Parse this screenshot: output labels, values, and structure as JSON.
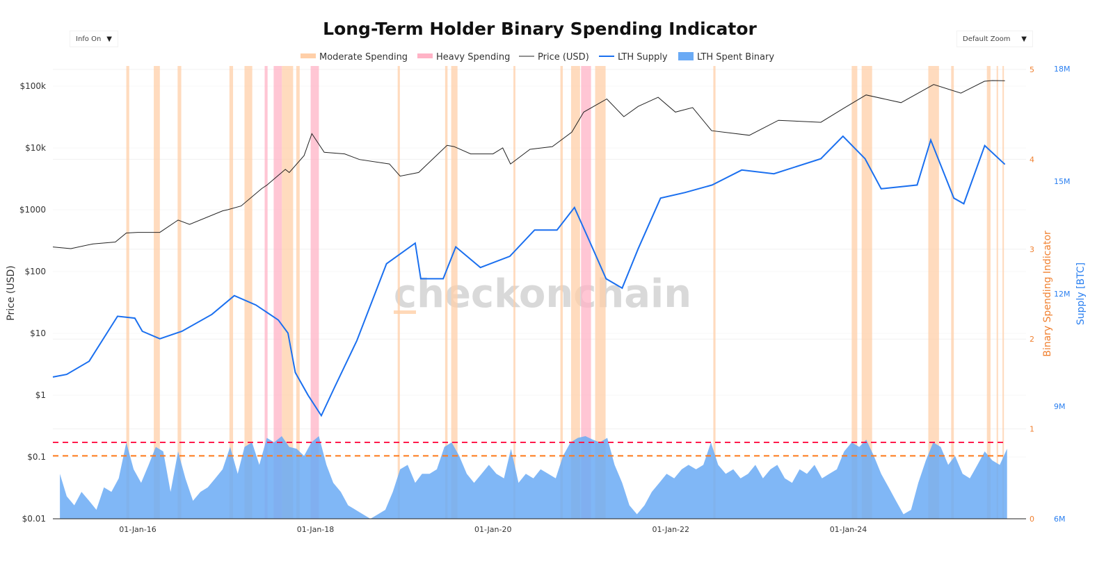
{
  "controls": {
    "info_label": "Info On",
    "zoom_label": "Default Zoom"
  },
  "watermark": "checkonchain",
  "colors": {
    "moderate": "#ffcfa8",
    "heavy": "#ffb3c6",
    "price": "#222222",
    "supply": "#1a6fef",
    "binary": "#6aaaf5",
    "red_line": "#ff1a4b",
    "orange_line": "#ff7a1a",
    "binary_axis": "#f08030",
    "supply_axis": "#2a7ff0"
  },
  "chart_data": {
    "type": "line",
    "title": "Long-Term Holder Binary Spending Indicator",
    "legend": {
      "position": "top",
      "items": [
        "Moderate Spending",
        "Heavy Spending",
        "Price (USD)",
        "LTH Supply",
        "LTH Spent Binary"
      ]
    },
    "x": {
      "type": "date",
      "range": [
        "2015-01-17",
        "2026-01-01"
      ],
      "ticks": [
        "2016-01-01",
        "2018-01-01",
        "2020-01-01",
        "2022-01-01",
        "2024-01-01"
      ],
      "tick_labels": [
        "01-Jan-16",
        "01-Jan-18",
        "01-Jan-20",
        "01-Jan-22",
        "01-Jan-24"
      ]
    },
    "y_price": {
      "label": "Price (USD)",
      "scale": "log",
      "range": [
        0.01,
        150000
      ],
      "ticks": [
        100000,
        10000,
        1000,
        100,
        10,
        1,
        0.1,
        0.01
      ],
      "tick_labels": [
        "$100k",
        "$10k",
        "$1000",
        "$100",
        "$10",
        "$1",
        "$0.1",
        "$0.01"
      ]
    },
    "y_binary": {
      "label": "Binary Spending Indicator",
      "range": [
        0,
        5
      ],
      "ticks": [
        0,
        1,
        2,
        3,
        4,
        5
      ],
      "tick_labels": [
        "0",
        "1",
        "2",
        "3",
        "4",
        "5"
      ]
    },
    "y_supply": {
      "label": "Supply [BTC]",
      "range": [
        6000000,
        18000000
      ],
      "ticks": [
        6000000,
        9000000,
        12000000,
        15000000,
        18000000
      ],
      "tick_labels": [
        "6M",
        "9M",
        "12M",
        "15M",
        "18M"
      ]
    },
    "thresholds": {
      "heavy": 0.85,
      "moderate": 0.7
    },
    "price": [
      [
        "2015-01-17",
        250
      ],
      [
        "2015-04-01",
        235
      ],
      [
        "2015-07-01",
        280
      ],
      [
        "2015-10-01",
        300
      ],
      [
        "2015-11-15",
        420
      ],
      [
        "2016-01-01",
        430
      ],
      [
        "2016-04-01",
        430
      ],
      [
        "2016-06-15",
        680
      ],
      [
        "2016-08-01",
        580
      ],
      [
        "2016-12-15",
        960
      ],
      [
        "2017-01-05",
        1000
      ],
      [
        "2017-03-01",
        1150
      ],
      [
        "2017-05-25",
        2200
      ],
      [
        "2017-06-15",
        2500
      ],
      [
        "2017-08-30",
        4500
      ],
      [
        "2017-09-15",
        4000
      ],
      [
        "2017-11-15",
        7500
      ],
      [
        "2017-12-17",
        17000
      ],
      [
        "2018-02-06",
        8500
      ],
      [
        "2018-05-01",
        8000
      ],
      [
        "2018-07-01",
        6500
      ],
      [
        "2018-11-01",
        5500
      ],
      [
        "2018-12-15",
        3500
      ],
      [
        "2019-03-01",
        4000
      ],
      [
        "2019-06-26",
        11000
      ],
      [
        "2019-07-25",
        10500
      ],
      [
        "2019-10-01",
        8000
      ],
      [
        "2020-01-01",
        8000
      ],
      [
        "2020-02-10",
        10000
      ],
      [
        "2020-03-13",
        5500
      ],
      [
        "2020-06-01",
        9500
      ],
      [
        "2020-09-01",
        10500
      ],
      [
        "2020-11-20",
        18000
      ],
      [
        "2021-01-08",
        38000
      ],
      [
        "2021-04-13",
        62000
      ],
      [
        "2021-06-22",
        32000
      ],
      [
        "2021-08-20",
        47000
      ],
      [
        "2021-11-10",
        66000
      ],
      [
        "2022-01-20",
        38000
      ],
      [
        "2022-04-01",
        45000
      ],
      [
        "2022-06-18",
        19000
      ],
      [
        "2022-11-20",
        16000
      ],
      [
        "2023-03-20",
        28000
      ],
      [
        "2023-09-10",
        26000
      ],
      [
        "2023-12-10",
        43000
      ],
      [
        "2024-03-14",
        72000
      ],
      [
        "2024-08-05",
        54000
      ],
      [
        "2024-12-17",
        106000
      ],
      [
        "2025-04-08",
        77000
      ],
      [
        "2025-07-14",
        120000
      ],
      [
        "2025-08-14",
        123000
      ],
      [
        "2025-10-06",
        122000
      ]
    ],
    "supply": [
      [
        "2015-01-17",
        9780000
      ],
      [
        "2015-03-15",
        9850000
      ],
      [
        "2015-06-15",
        10200000
      ],
      [
        "2015-10-10",
        11400000
      ],
      [
        "2015-12-20",
        11350000
      ],
      [
        "2016-01-20",
        11000000
      ],
      [
        "2016-04-01",
        10800000
      ],
      [
        "2016-07-01",
        11000000
      ],
      [
        "2016-11-01",
        11450000
      ],
      [
        "2017-02-01",
        11950000
      ],
      [
        "2017-05-01",
        11700000
      ],
      [
        "2017-08-01",
        11300000
      ],
      [
        "2017-09-10",
        10950000
      ],
      [
        "2017-10-10",
        9900000
      ],
      [
        "2017-12-01",
        9300000
      ],
      [
        "2018-01-25",
        8750000
      ],
      [
        "2018-03-20",
        9500000
      ],
      [
        "2018-06-20",
        10750000
      ],
      [
        "2018-10-20",
        12800000
      ],
      [
        "2019-02-15",
        13350000
      ],
      [
        "2019-03-10",
        12400000
      ],
      [
        "2019-06-10",
        12400000
      ],
      [
        "2019-08-01",
        13250000
      ],
      [
        "2019-11-10",
        12700000
      ],
      [
        "2020-03-10",
        13000000
      ],
      [
        "2020-06-20",
        13700000
      ],
      [
        "2020-09-20",
        13700000
      ],
      [
        "2020-12-01",
        14300000
      ],
      [
        "2021-02-01",
        13400000
      ],
      [
        "2021-04-10",
        12400000
      ],
      [
        "2021-06-15",
        12150000
      ],
      [
        "2021-08-20",
        13200000
      ],
      [
        "2021-11-20",
        14550000
      ],
      [
        "2022-03-01",
        14700000
      ],
      [
        "2022-06-20",
        14900000
      ],
      [
        "2022-10-20",
        15300000
      ],
      [
        "2023-03-01",
        15200000
      ],
      [
        "2023-09-10",
        15600000
      ],
      [
        "2023-12-10",
        16200000
      ],
      [
        "2024-03-10",
        15600000
      ],
      [
        "2024-05-15",
        14800000
      ],
      [
        "2024-10-10",
        14900000
      ],
      [
        "2024-12-05",
        16100000
      ],
      [
        "2025-03-10",
        14550000
      ],
      [
        "2025-04-20",
        14400000
      ],
      [
        "2025-07-15",
        15950000
      ],
      [
        "2025-10-06",
        15450000
      ]
    ],
    "lth_spent_binary_monthly": {
      "2015": [
        0.4,
        0.5,
        0.25,
        0.15,
        0.3,
        0.2,
        0.1,
        0.35,
        0.3,
        0.45,
        0.85,
        0.55
      ],
      "2016": [
        0.4,
        0.6,
        0.8,
        0.75,
        0.3,
        0.75,
        0.45,
        0.2,
        0.3,
        0.35,
        0.45,
        0.55
      ],
      "2017": [
        0.8,
        0.5,
        0.8,
        0.85,
        0.6,
        0.9,
        0.85,
        0.92,
        0.8,
        0.78,
        0.7,
        0.85
      ],
      "2018": [
        0.92,
        0.6,
        0.4,
        0.3,
        0.15,
        0.1,
        0.05,
        0.0,
        0.05,
        0.1,
        0.3,
        0.55
      ],
      "2019": [
        0.6,
        0.4,
        0.5,
        0.5,
        0.55,
        0.8,
        0.85,
        0.7,
        0.5,
        0.4,
        0.5,
        0.6
      ],
      "2020": [
        0.5,
        0.45,
        0.78,
        0.4,
        0.5,
        0.45,
        0.55,
        0.5,
        0.45,
        0.7,
        0.85,
        0.9
      ],
      "2021": [
        0.92,
        0.88,
        0.85,
        0.9,
        0.6,
        0.4,
        0.15,
        0.05,
        0.15,
        0.3,
        0.4,
        0.5
      ],
      "2022": [
        0.45,
        0.55,
        0.6,
        0.55,
        0.6,
        0.85,
        0.6,
        0.5,
        0.55,
        0.45,
        0.5,
        0.6
      ],
      "2023": [
        0.45,
        0.55,
        0.6,
        0.45,
        0.4,
        0.55,
        0.5,
        0.6,
        0.45,
        0.5,
        0.55,
        0.75
      ],
      "2024": [
        0.85,
        0.8,
        0.88,
        0.7,
        0.5,
        0.35,
        0.2,
        0.05,
        0.1,
        0.4,
        0.65,
        0.85
      ],
      "2025": [
        0.8,
        0.6,
        0.7,
        0.5,
        0.45,
        0.6,
        0.75,
        0.65,
        0.6,
        0.78
      ]
    },
    "spending_zones": [
      [
        "2015-11-15",
        "2015-11-27",
        "moderate"
      ],
      [
        "2016-03-07",
        "2016-04-01",
        "moderate"
      ],
      [
        "2016-06-13",
        "2016-06-28",
        "moderate"
      ],
      [
        "2017-01-12",
        "2017-01-27",
        "moderate"
      ],
      [
        "2017-03-15",
        "2017-04-16",
        "moderate"
      ],
      [
        "2017-06-06",
        "2017-06-18",
        "heavy"
      ],
      [
        "2017-07-13",
        "2017-08-16",
        "heavy"
      ],
      [
        "2017-08-16",
        "2017-10-01",
        "moderate"
      ],
      [
        "2017-10-14",
        "2017-10-28",
        "moderate"
      ],
      [
        "2017-12-12",
        "2018-01-15",
        "heavy"
      ],
      [
        "2018-12-05",
        "2018-12-14",
        "moderate"
      ],
      [
        "2019-06-18",
        "2019-06-28",
        "moderate"
      ],
      [
        "2019-07-13",
        "2019-08-08",
        "moderate"
      ],
      [
        "2020-03-25",
        "2020-04-02",
        "moderate"
      ],
      [
        "2020-10-04",
        "2020-10-14",
        "moderate"
      ],
      [
        "2020-11-17",
        "2020-12-24",
        "moderate"
      ],
      [
        "2020-12-28",
        "2021-02-07",
        "heavy"
      ],
      [
        "2021-02-24",
        "2021-04-08",
        "moderate"
      ],
      [
        "2022-06-25",
        "2022-07-04",
        "moderate"
      ],
      [
        "2024-01-15",
        "2024-02-07",
        "moderate"
      ],
      [
        "2024-02-25",
        "2024-04-08",
        "moderate"
      ],
      [
        "2024-11-25",
        "2025-01-08",
        "moderate"
      ],
      [
        "2025-02-27",
        "2025-03-10",
        "moderate"
      ],
      [
        "2025-07-24",
        "2025-08-08",
        "moderate"
      ],
      [
        "2025-09-02",
        "2025-09-08",
        "moderate"
      ],
      [
        "2025-09-26",
        "2025-10-02",
        "moderate"
      ]
    ]
  }
}
